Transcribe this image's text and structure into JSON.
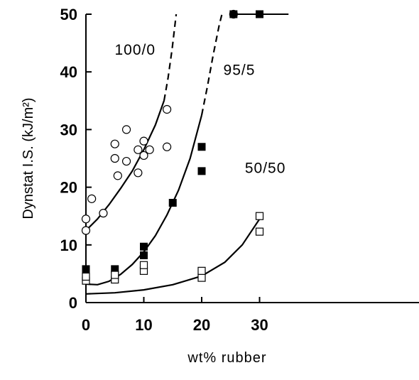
{
  "chart_data": {
    "type": "scatter",
    "xlabel": "wt% rubber",
    "ylabel": "Dynstat I.S. (kJ/m²)",
    "xlim": [
      0,
      35
    ],
    "ylim": [
      0,
      50
    ],
    "xticks": [
      "0",
      "10",
      "20",
      "30"
    ],
    "yticks": [
      "0",
      "10",
      "20",
      "30",
      "40",
      "50"
    ],
    "grid": false,
    "series": [
      {
        "name": "100/0",
        "marker": "open-circle",
        "points": [
          [
            0,
            12.5
          ],
          [
            0,
            14.5
          ],
          [
            1,
            18
          ],
          [
            3,
            15.5
          ],
          [
            5,
            27.5
          ],
          [
            5,
            25
          ],
          [
            5.5,
            22
          ],
          [
            7,
            30
          ],
          [
            7,
            24.5
          ],
          [
            9,
            26.5
          ],
          [
            9,
            22.5
          ],
          [
            10,
            28
          ],
          [
            10,
            25.5
          ],
          [
            11,
            26.5
          ],
          [
            14,
            33.5
          ],
          [
            14,
            27
          ],
          [
            25.5,
            50
          ]
        ],
        "fit_curve_solid": [
          [
            0,
            12.5
          ],
          [
            2,
            14.5
          ],
          [
            4,
            17
          ],
          [
            6,
            19.8
          ],
          [
            8,
            22.8
          ],
          [
            10,
            26.5
          ],
          [
            12,
            30.8
          ],
          [
            13.5,
            35
          ]
        ],
        "fit_curve_dashed": [
          [
            13.5,
            35
          ],
          [
            14.2,
            39
          ],
          [
            14.9,
            44
          ],
          [
            15.6,
            50
          ]
        ]
      },
      {
        "name": "95/5",
        "marker": "filled-square",
        "points": [
          [
            0,
            5
          ],
          [
            0,
            5.8
          ],
          [
            5,
            5.8
          ],
          [
            10,
            8.2
          ],
          [
            10,
            9.7
          ],
          [
            15,
            17.3
          ],
          [
            20,
            27
          ],
          [
            20,
            22.8
          ],
          [
            25.5,
            50
          ],
          [
            30,
            50
          ]
        ],
        "fit_curve_solid": [
          [
            0,
            3.2
          ],
          [
            2,
            3.1
          ],
          [
            4,
            3.7
          ],
          [
            6,
            4.9
          ],
          [
            8,
            6.6
          ],
          [
            10,
            8.8
          ],
          [
            12,
            11.6
          ],
          [
            14,
            15.2
          ],
          [
            16,
            19.5
          ],
          [
            18,
            25
          ],
          [
            20,
            32.5
          ]
        ],
        "fit_curve_dashed": [
          [
            20,
            32.5
          ],
          [
            21,
            37.5
          ],
          [
            22,
            43
          ],
          [
            23,
            48
          ],
          [
            23.5,
            50
          ]
        ]
      },
      {
        "name": "50/50",
        "marker": "open-square",
        "points": [
          [
            0,
            3.8
          ],
          [
            0,
            4.5
          ],
          [
            5,
            4
          ],
          [
            5,
            4.8
          ],
          [
            10,
            5.5
          ],
          [
            10,
            6.5
          ],
          [
            20,
            4.3
          ],
          [
            20,
            5.5
          ],
          [
            30,
            15
          ],
          [
            30,
            12.3
          ]
        ],
        "fit_curve_solid": [
          [
            0,
            1.5
          ],
          [
            5,
            1.7
          ],
          [
            10,
            2.2
          ],
          [
            15,
            3.1
          ],
          [
            20,
            4.6
          ],
          [
            24,
            7
          ],
          [
            27,
            10
          ],
          [
            30,
            14.5
          ],
          [
            30.5,
            15.5
          ]
        ]
      }
    ],
    "annotations": [
      {
        "text": "100/0",
        "x": 8.5,
        "y": 43
      },
      {
        "text": "95/5",
        "x": 26.5,
        "y": 39.5
      },
      {
        "text": "50/50",
        "x": 31,
        "y": 22.5
      }
    ],
    "upper_bound_line": {
      "y": 50,
      "x_from": 25.5,
      "x_to": 35
    }
  }
}
